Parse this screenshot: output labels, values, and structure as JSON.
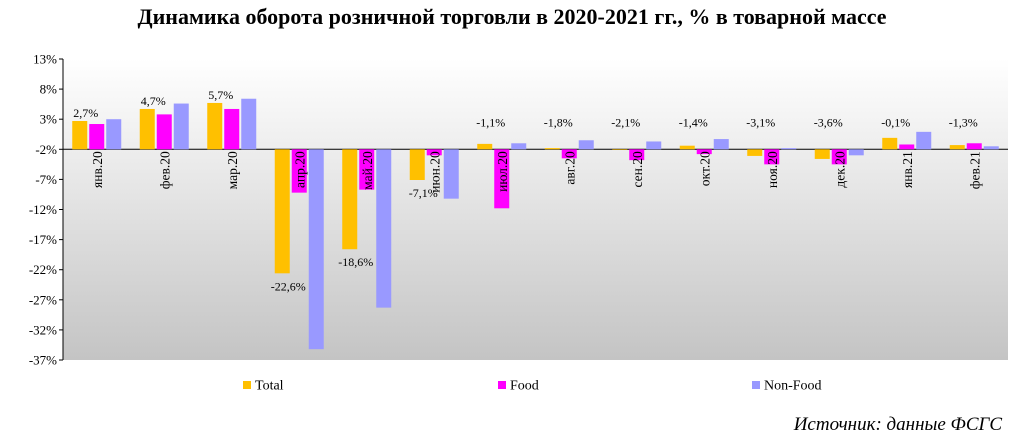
{
  "title": "Динамика оборота розничной торговли в 2020-2021 гг., % в товарной массе",
  "source": "Источник: данные ФСГС",
  "chart_data": {
    "type": "bar",
    "categories": [
      "янв.20",
      "фев.20",
      "мар.20",
      "апр.20",
      "май.20",
      "июн.20",
      "июл.20",
      "авг.20",
      "сен.20",
      "окт.20",
      "ноя.20",
      "дек.20",
      "янв.21",
      "фев.21"
    ],
    "series": [
      {
        "name": "Total",
        "color": "#FFC000",
        "values": [
          2.7,
          4.7,
          5.7,
          -22.6,
          -18.6,
          -7.1,
          -1.1,
          -1.8,
          -2.1,
          -1.4,
          -3.1,
          -3.6,
          -0.1,
          -1.3
        ]
      },
      {
        "name": "Food",
        "color": "#FF00FF",
        "values": [
          2.2,
          3.8,
          4.7,
          -9.2,
          -8.7,
          -3.0,
          -11.8,
          -3.5,
          -3.8,
          -2.8,
          -4.5,
          -4.5,
          -1.2,
          -1.0
        ]
      },
      {
        "name": "Non-Food",
        "color": "#9999FF",
        "values": [
          3.0,
          5.6,
          6.4,
          -35.2,
          -28.3,
          -10.2,
          -1.0,
          -0.5,
          -0.7,
          -0.3,
          -1.8,
          -3.0,
          0.9,
          -1.5
        ]
      }
    ],
    "data_labels": [
      "2,7%",
      "4,7%",
      "5,7%",
      "-22,6%",
      "-18,6%",
      "-7,1%",
      "-1,1%",
      "-1,8%",
      "-2,1%",
      "-1,4%",
      "-3,1%",
      "-3,6%",
      "-0,1%",
      "-1,3%"
    ],
    "y_ticks": [
      13,
      8,
      3,
      -2,
      -7,
      -12,
      -17,
      -22,
      -27,
      -32,
      -37
    ],
    "y_tick_labels": [
      "13%",
      "8%",
      "3%",
      "-2%",
      "-7%",
      "-12%",
      "-17%",
      "-22%",
      "-27%",
      "-32%",
      "-37%"
    ],
    "ylim": [
      -37,
      13
    ],
    "legend_position": "bottom",
    "grid": false
  }
}
